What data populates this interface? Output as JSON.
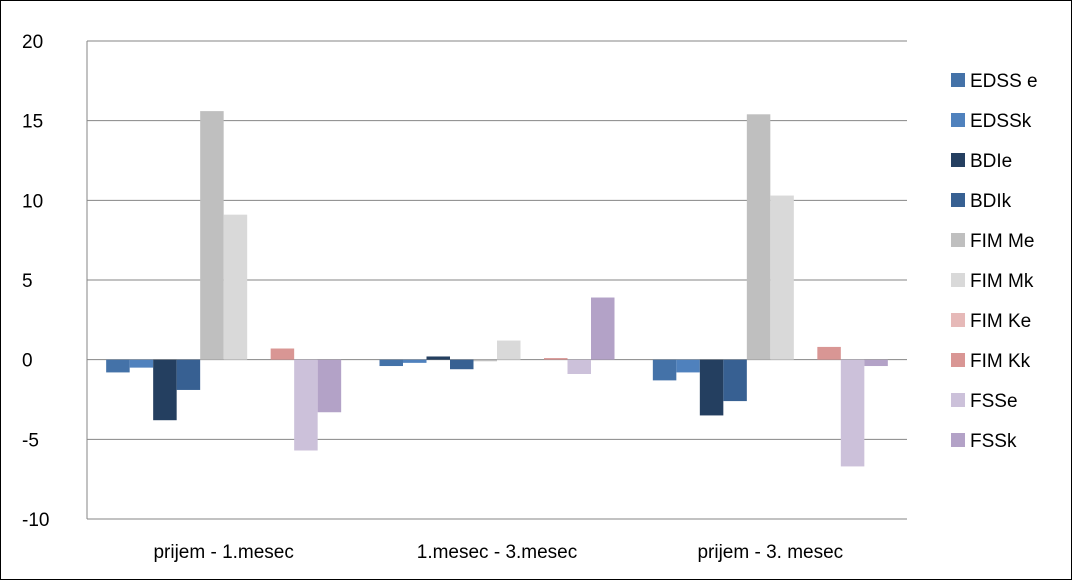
{
  "chart_data": {
    "type": "bar",
    "title": "",
    "xlabel": "",
    "ylabel": "",
    "ylim": [
      -10,
      20
    ],
    "yticks": [
      20,
      15,
      10,
      5,
      0,
      -5,
      -10
    ],
    "grid": true,
    "legend_position": "right",
    "categories": [
      "prijem - 1.mesec",
      "1.mesec - 3.mesec",
      "prijem - 3. mesec"
    ],
    "series": [
      {
        "name": "EDSS e",
        "color": "#4472a8",
        "values": [
          -0.8,
          -0.4,
          -1.3
        ]
      },
      {
        "name": "EDSSk",
        "color": "#4f81bd",
        "values": [
          -0.5,
          -0.2,
          -0.8
        ]
      },
      {
        "name": "BDIe",
        "color": "#243f60",
        "values": [
          -3.8,
          0.2,
          -3.5
        ]
      },
      {
        "name": "BDIk",
        "color": "#376092",
        "values": [
          -1.9,
          -0.6,
          -2.6
        ]
      },
      {
        "name": "FIM Me",
        "color": "#bfbfbf",
        "values": [
          15.6,
          -0.1,
          15.4
        ]
      },
      {
        "name": "FIM Mk",
        "color": "#d9d9d9",
        "values": [
          9.1,
          1.2,
          10.3
        ]
      },
      {
        "name": "FIM Ke",
        "color": "#e6b9b8",
        "values": [
          0.0,
          0.0,
          0.0
        ]
      },
      {
        "name": "FIM Kk",
        "color": "#d99694",
        "values": [
          0.7,
          0.1,
          0.8
        ]
      },
      {
        "name": "FSSe",
        "color": "#ccc1da",
        "values": [
          -5.7,
          -0.9,
          -6.7
        ]
      },
      {
        "name": "FSSk",
        "color": "#b3a2c7",
        "values": [
          -3.3,
          3.9,
          -0.4
        ]
      }
    ]
  }
}
